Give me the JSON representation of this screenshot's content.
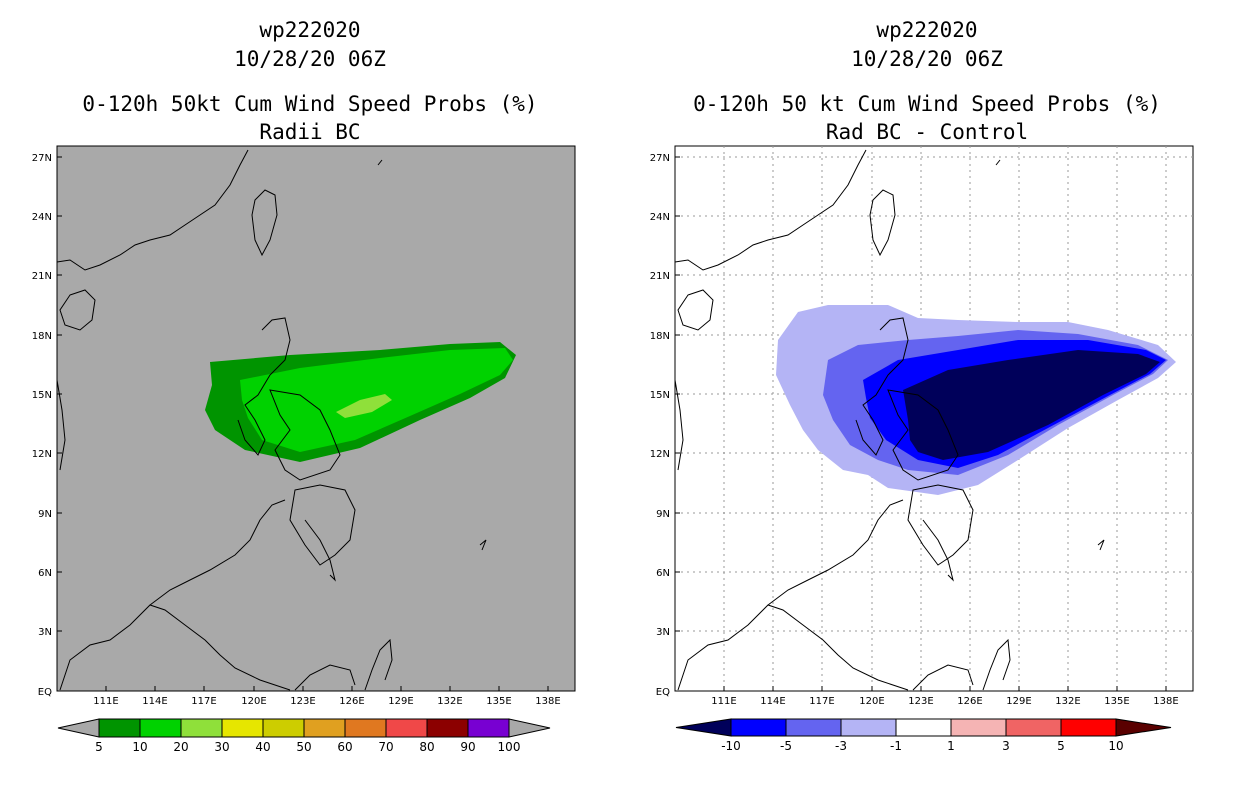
{
  "left_panel": {
    "storm_id": "wp222020",
    "datetime": "10/28/20 06Z",
    "title": "0-120h 50kt Cum Wind Speed Probs (%)",
    "subtitle": "Radii BC",
    "background_color": "#a9a9a9",
    "colorbar": {
      "labels": [
        "5",
        "10",
        "20",
        "30",
        "40",
        "50",
        "60",
        "70",
        "80",
        "90",
        "100"
      ],
      "colors": [
        "#009400",
        "#00d200",
        "#8fe03a",
        "#e6e600",
        "#cdcd00",
        "#e0a020",
        "#e07820",
        "#f04848",
        "#8c0000",
        "#7800d2"
      ]
    }
  },
  "right_panel": {
    "storm_id": "wp222020",
    "datetime": "10/28/20 06Z",
    "title": "0-120h 50 kt Cum Wind Speed Probs (%)",
    "subtitle": "Rad BC - Control",
    "background_color": "#ffffff",
    "colorbar": {
      "labels": [
        "-10",
        "-5",
        "-3",
        "-1",
        "1",
        "3",
        "5",
        "10"
      ],
      "colors": [
        "#00005a",
        "#0000ff",
        "#6464f0",
        "#b4b4f5",
        "#ffffff",
        "#f5b4b4",
        "#f06464",
        "#ff0000",
        "#5a0000"
      ]
    }
  },
  "map_axes": {
    "lon_labels": [
      "111E",
      "114E",
      "117E",
      "120E",
      "123E",
      "126E",
      "129E",
      "132E",
      "135E",
      "138E"
    ],
    "lat_labels": [
      "EQ",
      "3N",
      "6N",
      "9N",
      "12N",
      "15N",
      "18N",
      "21N",
      "24N",
      "27N"
    ]
  }
}
